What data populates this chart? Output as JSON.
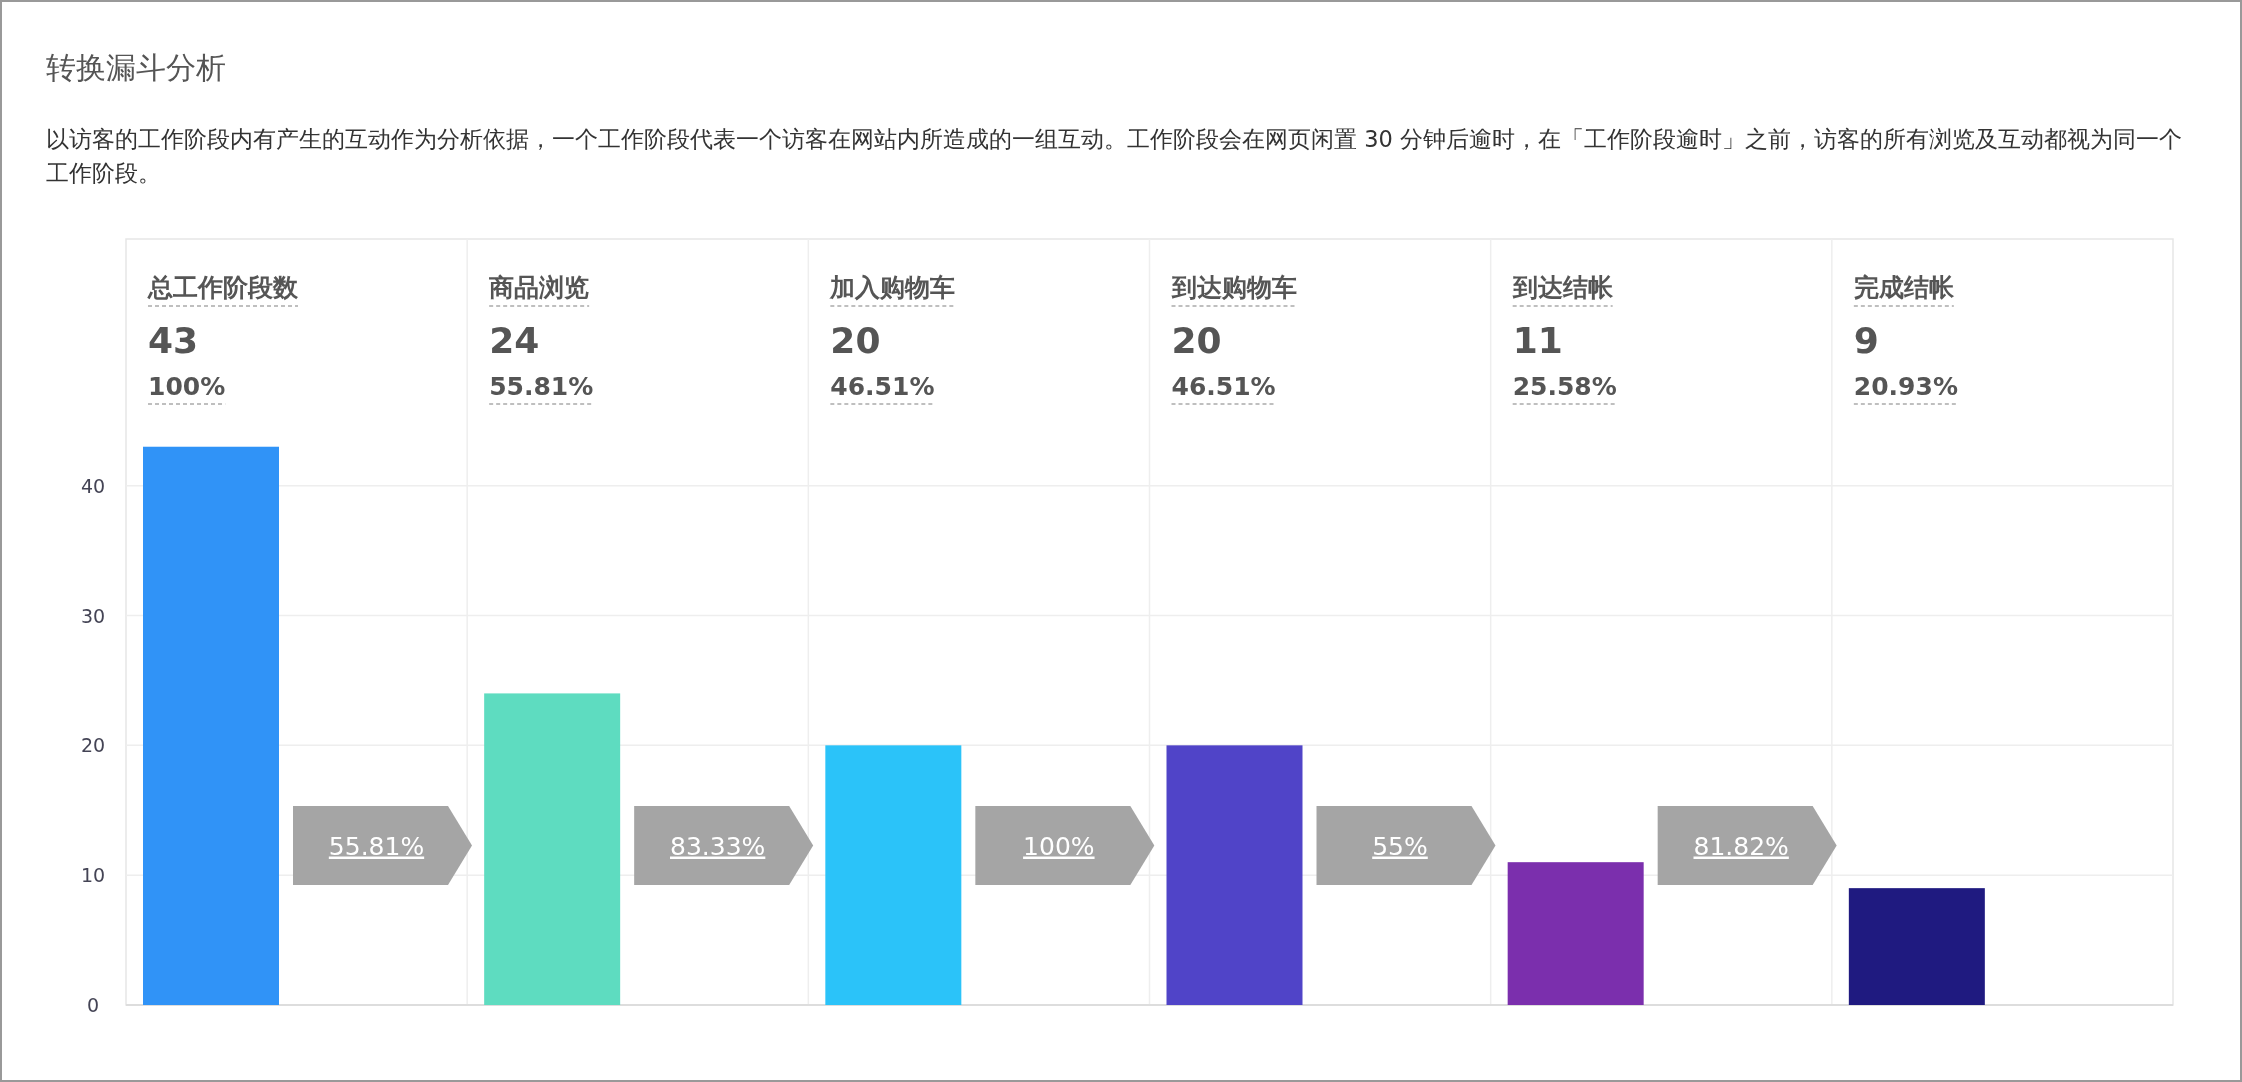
{
  "chart_data": {
    "type": "bar",
    "title": "转换漏斗分析",
    "subtitle": "以访客的工作阶段内有产生的互动作为分析依据，一个工作阶段代表一个访客在网站内所造成的一组互动。工作阶段会在网页闲置 30 分钟后逾时，在「工作阶段逾时」之前，访客的所有浏览及互动都视为同一个工作阶段。",
    "categories": [
      "总工作阶段数",
      "商品浏览",
      "加入购物车",
      "到达购物车",
      "到达结帐",
      "完成结帐"
    ],
    "values": [
      43,
      24,
      20,
      20,
      11,
      9
    ],
    "colors": [
      "#3093f7",
      "#5edcc0",
      "#2bc3f9",
      "#5044c8",
      "#7b2fad",
      "#1f1a80"
    ],
    "ylim": [
      0,
      59
    ],
    "yticks": [
      0,
      10,
      20,
      30,
      40
    ],
    "grid": true,
    "annotations": [
      "43",
      "24",
      "20",
      "20",
      "11",
      "9",
      "100%",
      "55.81%",
      "46.51%",
      "46.51%",
      "25.58%",
      "20.93%",
      "55.81%",
      "83.33%",
      "100%",
      "55%",
      "81.82%"
    ]
  }
}
